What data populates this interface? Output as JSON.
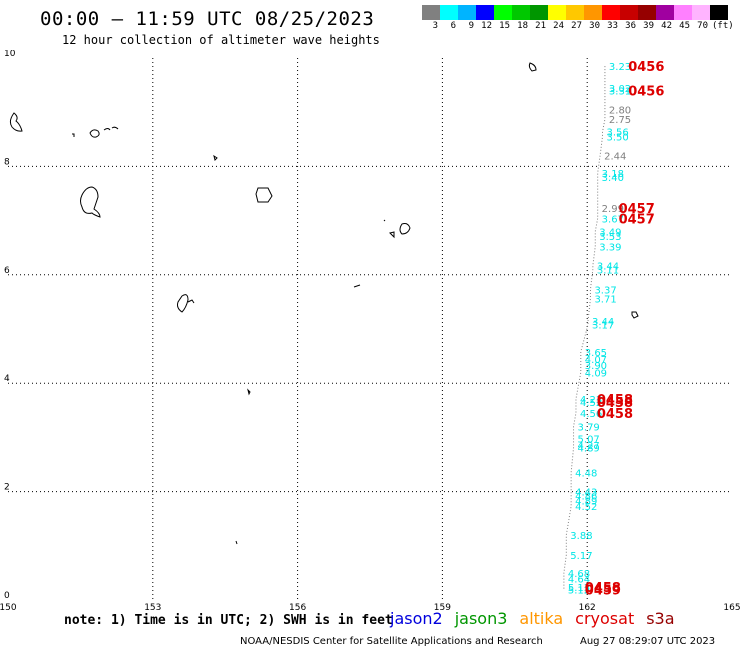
{
  "header": {
    "title": "00:00 – 11:59 UTC 08/25/2023",
    "subtitle": "12 hour collection of altimeter wave heights"
  },
  "legend": {
    "units": "(ft)",
    "colors": [
      "#808080",
      "#00ffff",
      "#00b4ff",
      "#0000ff",
      "#00ff00",
      "#00c800",
      "#009600",
      "#ffff00",
      "#ffc800",
      "#ff9600",
      "#ff0000",
      "#c80000",
      "#960000",
      "#a000a0",
      "#ff80ff",
      "#ffb4ff",
      "#000000"
    ],
    "labels": [
      "3",
      "6",
      "9",
      "12",
      "15",
      "18",
      "21",
      "24",
      "27",
      "30",
      "33",
      "36",
      "39",
      "42",
      "45",
      "70"
    ]
  },
  "axes": {
    "x_ticks": [
      "150",
      "153",
      "156",
      "159",
      "162",
      "165"
    ],
    "y_ticks": [
      "0",
      "2",
      "4",
      "6",
      "8",
      "10"
    ],
    "x_range": [
      150,
      165
    ],
    "y_range": [
      0,
      10
    ]
  },
  "readings": [
    {
      "lon": 162.45,
      "lat": 9.85,
      "text": "3.23",
      "color": "#00e6e6"
    },
    {
      "lon": 162.45,
      "lat": 9.45,
      "text": "3.02",
      "color": "#00e6e6"
    },
    {
      "lon": 162.45,
      "lat": 9.4,
      "text": "3.31",
      "color": "#00e6e6"
    },
    {
      "lon": 162.45,
      "lat": 9.05,
      "text": "2.80",
      "color": "#808080"
    },
    {
      "lon": 162.45,
      "lat": 8.87,
      "text": "2.75",
      "color": "#808080"
    },
    {
      "lon": 162.4,
      "lat": 8.64,
      "text": "3.56",
      "color": "#00e6e6"
    },
    {
      "lon": 162.4,
      "lat": 8.55,
      "text": "3.50",
      "color": "#00e6e6"
    },
    {
      "lon": 162.35,
      "lat": 8.2,
      "text": "2.44",
      "color": "#808080"
    },
    {
      "lon": 162.3,
      "lat": 7.88,
      "text": "3.18",
      "color": "#00e6e6"
    },
    {
      "lon": 162.3,
      "lat": 7.8,
      "text": "3.40",
      "color": "#00e6e6"
    },
    {
      "lon": 162.3,
      "lat": 7.23,
      "text": "2.99",
      "color": "#808080"
    },
    {
      "lon": 162.3,
      "lat": 7.04,
      "text": "3.67",
      "color": "#00e6e6"
    },
    {
      "lon": 162.25,
      "lat": 6.8,
      "text": "3.49",
      "color": "#00e6e6"
    },
    {
      "lon": 162.25,
      "lat": 6.72,
      "text": "3.53",
      "color": "#00e6e6"
    },
    {
      "lon": 162.25,
      "lat": 6.52,
      "text": "3.39",
      "color": "#00e6e6"
    },
    {
      "lon": 162.2,
      "lat": 6.17,
      "text": "3.44",
      "color": "#00e6e6"
    },
    {
      "lon": 162.2,
      "lat": 6.1,
      "text": "3.11",
      "color": "#00e6e6"
    },
    {
      "lon": 162.15,
      "lat": 5.73,
      "text": "3.37",
      "color": "#00e6e6"
    },
    {
      "lon": 162.15,
      "lat": 5.56,
      "text": "3.71",
      "color": "#00e6e6"
    },
    {
      "lon": 162.1,
      "lat": 5.15,
      "text": "3.44",
      "color": "#00e6e6"
    },
    {
      "lon": 162.1,
      "lat": 5.08,
      "text": "3.17",
      "color": "#00e6e6"
    },
    {
      "lon": 161.95,
      "lat": 4.58,
      "text": "3.65",
      "color": "#00e6e6"
    },
    {
      "lon": 161.95,
      "lat": 4.45,
      "text": "4.07",
      "color": "#00e6e6"
    },
    {
      "lon": 161.95,
      "lat": 4.34,
      "text": "3.90",
      "color": "#00e6e6"
    },
    {
      "lon": 161.95,
      "lat": 4.2,
      "text": "4.09",
      "color": "#00e6e6"
    },
    {
      "lon": 161.85,
      "lat": 3.71,
      "text": "4.23",
      "color": "#00e6e6"
    },
    {
      "lon": 161.85,
      "lat": 3.65,
      "text": "4.52",
      "color": "#00e6e6"
    },
    {
      "lon": 161.85,
      "lat": 3.45,
      "text": "4.56",
      "color": "#00e6e6"
    },
    {
      "lon": 161.8,
      "lat": 3.2,
      "text": "3.79",
      "color": "#00e6e6"
    },
    {
      "lon": 161.8,
      "lat": 2.98,
      "text": "5.07",
      "color": "#00e6e6"
    },
    {
      "lon": 161.8,
      "lat": 2.86,
      "text": "4.27",
      "color": "#00e6e6"
    },
    {
      "lon": 161.8,
      "lat": 2.81,
      "text": "4.89",
      "color": "#00e6e6"
    },
    {
      "lon": 161.75,
      "lat": 2.35,
      "text": "4.48",
      "color": "#00e6e6"
    },
    {
      "lon": 161.75,
      "lat": 2.0,
      "text": "4.43",
      "color": "#00e6e6"
    },
    {
      "lon": 161.75,
      "lat": 1.93,
      "text": "4.86",
      "color": "#00e6e6"
    },
    {
      "lon": 161.75,
      "lat": 1.84,
      "text": "4.89",
      "color": "#00e6e6"
    },
    {
      "lon": 161.75,
      "lat": 1.73,
      "text": "4.52",
      "color": "#00e6e6"
    },
    {
      "lon": 161.65,
      "lat": 1.2,
      "text": "3.88",
      "color": "#00e6e6"
    },
    {
      "lon": 161.65,
      "lat": 0.83,
      "text": "5.17",
      "color": "#00e6e6"
    },
    {
      "lon": 161.6,
      "lat": 0.5,
      "text": "4.68",
      "color": "#00e6e6"
    },
    {
      "lon": 161.6,
      "lat": 0.4,
      "text": "4.64",
      "color": "#00e6e6"
    },
    {
      "lon": 161.6,
      "lat": 0.24,
      "text": "5.13",
      "color": "#00e6e6"
    },
    {
      "lon": 161.6,
      "lat": 0.19,
      "text": "5.12",
      "color": "#00e6e6"
    }
  ],
  "passes": [
    {
      "lon": 162.85,
      "lat": 9.85,
      "text": "0456"
    },
    {
      "lon": 162.85,
      "lat": 9.4,
      "text": "0456"
    },
    {
      "lon": 162.65,
      "lat": 7.23,
      "text": "0457"
    },
    {
      "lon": 162.65,
      "lat": 7.04,
      "text": "0457"
    },
    {
      "lon": 162.2,
      "lat": 3.71,
      "text": "0458"
    },
    {
      "lon": 162.2,
      "lat": 3.65,
      "text": "0458"
    },
    {
      "lon": 162.2,
      "lat": 3.45,
      "text": "0458"
    },
    {
      "lon": 161.95,
      "lat": 0.24,
      "text": "0458"
    },
    {
      "lon": 161.95,
      "lat": 0.19,
      "text": "0459"
    }
  ],
  "footer": {
    "note": "note: 1) Time is in UTC; 2) SWH is in feet",
    "credit": "NOAA/NESDIS Center for Satellite Applications and Research",
    "timestamp": "Aug 27 08:29:07 UTC 2023",
    "satellites": [
      {
        "name": "jason2",
        "color": "#0000dd"
      },
      {
        "name": "jason3",
        "color": "#009600"
      },
      {
        "name": "altika",
        "color": "#ff9600"
      },
      {
        "name": "cryosat",
        "color": "#dd0000"
      },
      {
        "name": "s3a",
        "color": "#960000"
      }
    ]
  }
}
